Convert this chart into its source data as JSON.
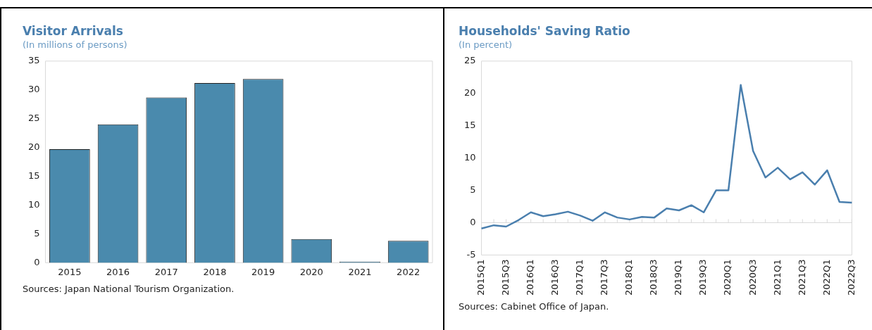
{
  "chart_data": [
    {
      "type": "bar",
      "title": "Visitor Arrivals",
      "subtitle": "(In millions of persons)",
      "categories": [
        "2015",
        "2016",
        "2017",
        "2018",
        "2019",
        "2020",
        "2021",
        "2022"
      ],
      "values": [
        19.7,
        24.0,
        28.7,
        31.2,
        31.9,
        4.1,
        0.2,
        3.8
      ],
      "color": "#4a8aad",
      "ylim": [
        0,
        35
      ],
      "yticks": [
        0,
        5,
        10,
        15,
        20,
        25,
        30,
        35
      ],
      "grid": false,
      "legend": false,
      "annotations": [
        "Sources: Japan National Tourism Organization."
      ]
    },
    {
      "type": "line",
      "title": "Households' Saving Ratio",
      "subtitle": "(In percent)",
      "categories": [
        "2015Q1",
        null,
        "2015Q3",
        null,
        "2016Q1",
        null,
        "2016Q3",
        null,
        "2017Q1",
        null,
        "2017Q3",
        null,
        "2018Q1",
        null,
        "2018Q3",
        null,
        "2019Q1",
        null,
        "2019Q3",
        null,
        "2020Q1",
        null,
        "2020Q3",
        null,
        "2021Q1",
        null,
        "2021Q3",
        null,
        "2022Q1",
        null,
        "2022Q3"
      ],
      "values": [
        -0.9,
        -0.4,
        -0.6,
        0.4,
        1.6,
        1.0,
        1.3,
        1.7,
        1.1,
        0.3,
        1.6,
        0.8,
        0.5,
        0.9,
        0.8,
        2.2,
        1.9,
        2.7,
        1.6,
        5.0,
        5.0,
        21.3,
        11.1,
        7.0,
        8.5,
        6.7,
        7.8,
        5.9,
        8.1,
        3.2,
        3.1
      ],
      "color": "#4a7fae",
      "ylim": [
        -5,
        25
      ],
      "yticks": [
        -5,
        0,
        5,
        10,
        15,
        20,
        25
      ],
      "grid": false,
      "legend": false,
      "marker": "none",
      "line_style": "solid",
      "ref_lines": [
        {
          "axis": "y",
          "value": 0,
          "color": "#d9d9d9"
        }
      ],
      "annotations": [
        "Sources: Cabinet Office of Japan."
      ]
    }
  ]
}
